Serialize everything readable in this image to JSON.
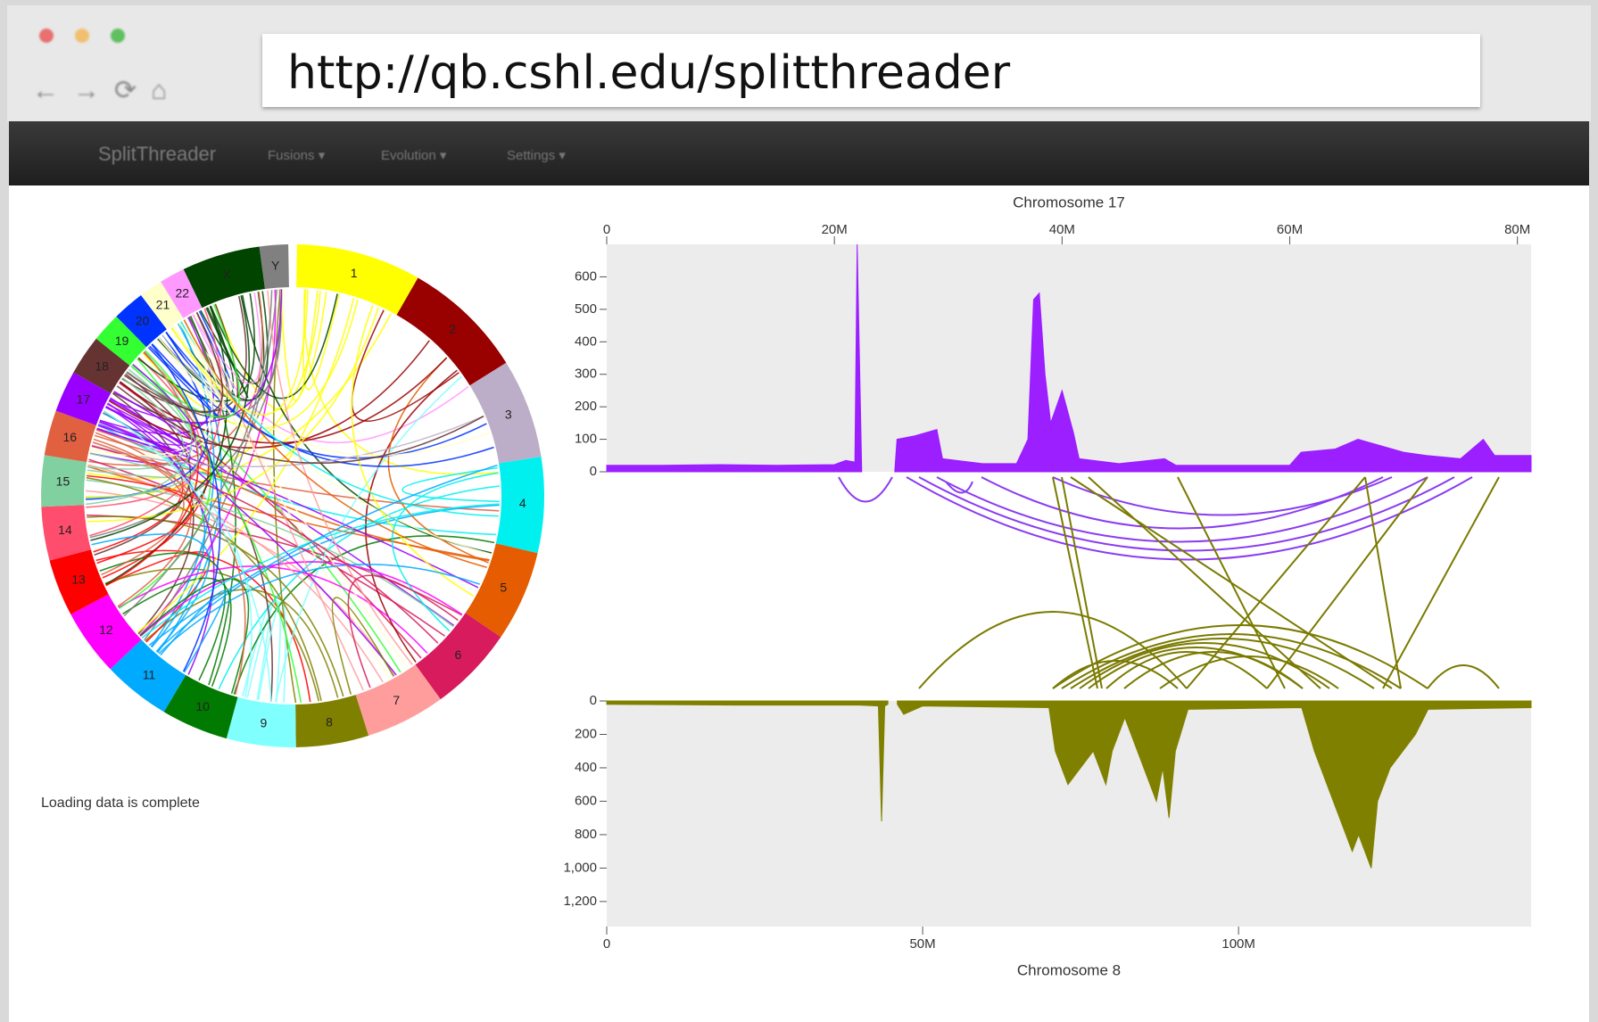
{
  "browser": {
    "url": "http://qb.cshl.edu/splitthreader"
  },
  "navbar": {
    "brand": "SplitThreader",
    "menus": [
      "Fusions",
      "Evolution",
      "Settings"
    ]
  },
  "status": "Loading data is complete",
  "circos": {
    "chromosomes": [
      {
        "label": "1",
        "color": "#ffff00",
        "length_mb": 249
      },
      {
        "label": "2",
        "color": "#990000",
        "length_mb": 243
      },
      {
        "label": "3",
        "color": "#bcaec8",
        "length_mb": 198
      },
      {
        "label": "4",
        "color": "#00f0f0",
        "length_mb": 191
      },
      {
        "label": "5",
        "color": "#e65c00",
        "length_mb": 181
      },
      {
        "label": "6",
        "color": "#d81b5c",
        "length_mb": 171
      },
      {
        "label": "7",
        "color": "#ff9d9d",
        "length_mb": 159
      },
      {
        "label": "8",
        "color": "#808000",
        "length_mb": 145
      },
      {
        "label": "9",
        "color": "#80ffff",
        "length_mb": 138
      },
      {
        "label": "10",
        "color": "#007a00",
        "length_mb": 134
      },
      {
        "label": "11",
        "color": "#00aaff",
        "length_mb": 135
      },
      {
        "label": "12",
        "color": "#ff00ff",
        "length_mb": 133
      },
      {
        "label": "13",
        "color": "#ff0000",
        "length_mb": 114
      },
      {
        "label": "14",
        "color": "#ff4d6d",
        "length_mb": 107
      },
      {
        "label": "15",
        "color": "#80d0a0",
        "length_mb": 102
      },
      {
        "label": "16",
        "color": "#e06040",
        "length_mb": 90
      },
      {
        "label": "17",
        "color": "#9900ff",
        "length_mb": 83
      },
      {
        "label": "18",
        "color": "#663333",
        "length_mb": 80
      },
      {
        "label": "19",
        "color": "#33ff33",
        "length_mb": 59
      },
      {
        "label": "20",
        "color": "#0033ff",
        "length_mb": 64
      },
      {
        "label": "21",
        "color": "#ffffcc",
        "length_mb": 47
      },
      {
        "label": "22",
        "color": "#ff99ff",
        "length_mb": 51
      },
      {
        "label": "X",
        "color": "#004400",
        "length_mb": 156
      },
      {
        "label": "Y",
        "color": "#808080",
        "length_mb": 57
      }
    ]
  },
  "chart_data": [
    {
      "type": "area",
      "title": "Chromosome 17",
      "xlim": [
        0,
        81.2
      ],
      "xticks": [
        0,
        {
          "value": 20,
          "label": "20M"
        },
        {
          "value": 40,
          "label": "40M"
        },
        {
          "value": 60,
          "label": "60M"
        },
        {
          "value": 80,
          "label": "80M"
        }
      ],
      "ylim": [
        0,
        700
      ],
      "yticks": [
        0,
        100,
        200,
        300,
        400,
        500,
        600
      ],
      "series": [
        {
          "color": "#9b1fff",
          "x": [
            0,
            5,
            10,
            15,
            20,
            21,
            21.8,
            22,
            22.4,
            null,
            25.3,
            25.5,
            27,
            29,
            29.5,
            33,
            36,
            37,
            37.5,
            38,
            38.5,
            39,
            40,
            41,
            41.5,
            45,
            49,
            50,
            60,
            61,
            64,
            66,
            68,
            70,
            72,
            75,
            77,
            78,
            81.2
          ],
          "values": [
            20,
            20,
            22,
            20,
            22,
            35,
            30,
            700,
            0,
            null,
            0,
            100,
            110,
            130,
            40,
            25,
            25,
            100,
            530,
            550,
            300,
            150,
            250,
            120,
            40,
            25,
            40,
            20,
            20,
            60,
            70,
            100,
            80,
            60,
            50,
            40,
            100,
            50,
            50
          ]
        }
      ]
    },
    {
      "type": "area",
      "title": "Chromosome 8",
      "y_inverted": true,
      "xlim": [
        0,
        146.3
      ],
      "xticks": [
        0,
        {
          "value": 50,
          "label": "50M"
        },
        {
          "value": 100,
          "label": "100M"
        }
      ],
      "ylim": [
        0,
        1350
      ],
      "yticks": [
        0,
        200,
        400,
        600,
        800,
        {
          "value": 1000,
          "label": "1,000"
        },
        {
          "value": 1200,
          "label": "1,200"
        }
      ],
      "series": [
        {
          "color": "#808000",
          "x": [
            0,
            20,
            40,
            43,
            43.5,
            44,
            44.5,
            null,
            46,
            47,
            50,
            70,
            71,
            73,
            75,
            77,
            79,
            80,
            82,
            85,
            87,
            88,
            89,
            90,
            92,
            110,
            112,
            114,
            116,
            118,
            119,
            121,
            122,
            124,
            126,
            128,
            130,
            146.3
          ],
          "values": [
            20,
            25,
            25,
            30,
            720,
            30,
            20,
            null,
            20,
            80,
            30,
            40,
            300,
            500,
            400,
            300,
            500,
            300,
            100,
            400,
            600,
            400,
            700,
            300,
            50,
            40,
            300,
            500,
            700,
            900,
            800,
            1000,
            600,
            400,
            300,
            200,
            50,
            40
          ]
        }
      ]
    }
  ]
}
